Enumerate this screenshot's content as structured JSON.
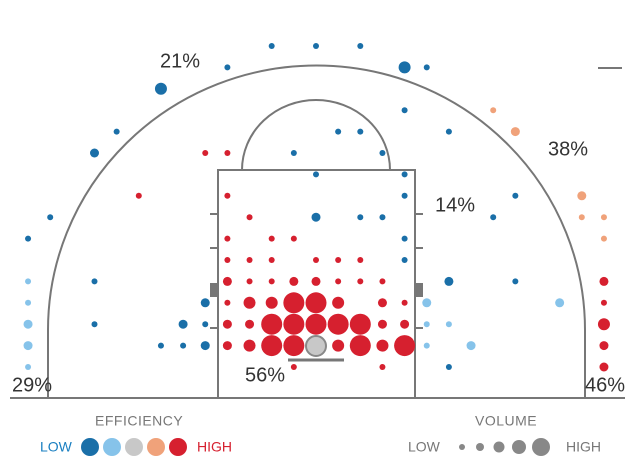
{
  "chart_data": {
    "type": "shot-chart",
    "zone_labels": [
      "21%",
      "38%",
      "14%",
      "56%",
      "29%",
      "46%"
    ],
    "colors": [
      "#1a6fa8",
      "#86c3ea",
      "#c8c8c8",
      "#f0a27a",
      "#d6202f"
    ],
    "efficiency_legend": {
      "title": "EFFICIENCY",
      "low": "LOW",
      "high": "HIGH"
    },
    "volume_legend": {
      "title": "VOLUME",
      "low": "LOW",
      "high": "HIGH"
    },
    "shots": [
      [
        -2,
        15,
        1,
        1
      ],
      [
        0,
        15,
        1,
        1
      ],
      [
        2,
        15,
        1,
        1
      ],
      [
        -4,
        14,
        1,
        1
      ],
      [
        4,
        14,
        3,
        1
      ],
      [
        5,
        14,
        1,
        1
      ],
      [
        -7,
        13,
        3,
        1
      ],
      [
        4,
        12,
        1,
        1
      ],
      [
        8,
        12,
        1,
        4
      ],
      [
        -9,
        11,
        1,
        1
      ],
      [
        1,
        11,
        1,
        1
      ],
      [
        2,
        11,
        1,
        1
      ],
      [
        6,
        11,
        1,
        1
      ],
      [
        9,
        11,
        2,
        4
      ],
      [
        -10,
        10,
        2,
        1
      ],
      [
        -5,
        10,
        1,
        5
      ],
      [
        -4,
        10,
        1,
        5
      ],
      [
        -1,
        10,
        1,
        1
      ],
      [
        3,
        10,
        1,
        1
      ],
      [
        0,
        9,
        1,
        1
      ],
      [
        4,
        9,
        1,
        1
      ],
      [
        -8,
        8,
        1,
        5
      ],
      [
        -4,
        8,
        1,
        5
      ],
      [
        4,
        8,
        1,
        1
      ],
      [
        9,
        8,
        1,
        1
      ],
      [
        12,
        8,
        2,
        4
      ],
      [
        -12,
        7,
        1,
        1
      ],
      [
        -3,
        7,
        1,
        5
      ],
      [
        0,
        7,
        2,
        1
      ],
      [
        2,
        7,
        1,
        1
      ],
      [
        3,
        7,
        1,
        1
      ],
      [
        8,
        7,
        1,
        1
      ],
      [
        12,
        7,
        1,
        4
      ],
      [
        13,
        7,
        1,
        4
      ],
      [
        -13,
        6,
        1,
        1
      ],
      [
        -4,
        6,
        1,
        5
      ],
      [
        -2,
        6,
        1,
        5
      ],
      [
        -1,
        6,
        1,
        5
      ],
      [
        4,
        6,
        1,
        1
      ],
      [
        13,
        6,
        1,
        4
      ],
      [
        -4,
        5,
        1,
        5
      ],
      [
        -3,
        5,
        1,
        5
      ],
      [
        -2,
        5,
        1,
        5
      ],
      [
        0,
        5,
        1,
        5
      ],
      [
        1,
        5,
        1,
        5
      ],
      [
        2,
        5,
        1,
        5
      ],
      [
        4,
        5,
        1,
        1
      ],
      [
        -13,
        4,
        1,
        2
      ],
      [
        -10,
        4,
        1,
        1
      ],
      [
        -4,
        4,
        2,
        5
      ],
      [
        -3,
        4,
        1,
        5
      ],
      [
        -2,
        4,
        1,
        5
      ],
      [
        -1,
        4,
        2,
        5
      ],
      [
        0,
        4,
        2,
        5
      ],
      [
        1,
        4,
        1,
        5
      ],
      [
        2,
        4,
        1,
        5
      ],
      [
        3,
        4,
        1,
        5
      ],
      [
        6,
        4,
        2,
        1
      ],
      [
        9,
        4,
        1,
        1
      ],
      [
        13,
        4,
        2,
        5
      ],
      [
        -13,
        3,
        1,
        2
      ],
      [
        -5,
        3,
        2,
        1
      ],
      [
        -4,
        3,
        1,
        5
      ],
      [
        -3,
        3,
        3,
        5
      ],
      [
        -2,
        3,
        3,
        5
      ],
      [
        -1,
        3,
        4,
        5
      ],
      [
        0,
        3,
        4,
        5
      ],
      [
        1,
        3,
        3,
        5
      ],
      [
        3,
        3,
        2,
        5
      ],
      [
        4,
        3,
        1,
        5
      ],
      [
        5,
        3,
        2,
        2
      ],
      [
        11,
        3,
        2,
        2
      ],
      [
        13,
        3,
        1,
        5
      ],
      [
        -13,
        2,
        2,
        2
      ],
      [
        -10,
        2,
        1,
        1
      ],
      [
        -6,
        2,
        2,
        1
      ],
      [
        -5,
        2,
        1,
        1
      ],
      [
        -4,
        2,
        2,
        5
      ],
      [
        -3,
        2,
        2,
        5
      ],
      [
        -2,
        2,
        4,
        5
      ],
      [
        -1,
        2,
        4,
        5
      ],
      [
        0,
        2,
        4,
        5
      ],
      [
        1,
        2,
        4,
        5
      ],
      [
        2,
        2,
        4,
        5
      ],
      [
        3,
        2,
        2,
        5
      ],
      [
        4,
        2,
        2,
        5
      ],
      [
        5,
        2,
        1,
        2
      ],
      [
        6,
        2,
        1,
        2
      ],
      [
        13,
        2,
        3,
        5
      ],
      [
        -13,
        1,
        2,
        2
      ],
      [
        -7,
        1,
        1,
        1
      ],
      [
        -6,
        1,
        1,
        1
      ],
      [
        -5,
        1,
        2,
        1
      ],
      [
        -4,
        1,
        2,
        5
      ],
      [
        -3,
        1,
        3,
        5
      ],
      [
        -2,
        1,
        4,
        5
      ],
      [
        -1,
        1,
        4,
        5
      ],
      [
        0,
        1,
        4,
        3
      ],
      [
        1,
        1,
        3,
        5
      ],
      [
        2,
        1,
        4,
        5
      ],
      [
        3,
        1,
        3,
        5
      ],
      [
        4,
        1,
        4,
        5
      ],
      [
        5,
        1,
        1,
        2
      ],
      [
        7,
        1,
        2,
        2
      ],
      [
        13,
        1,
        2,
        5
      ],
      [
        -13,
        0,
        1,
        2
      ],
      [
        -1,
        0,
        1,
        5
      ],
      [
        3,
        0,
        1,
        5
      ],
      [
        6,
        0,
        1,
        1
      ],
      [
        13,
        0,
        2,
        5
      ]
    ]
  }
}
